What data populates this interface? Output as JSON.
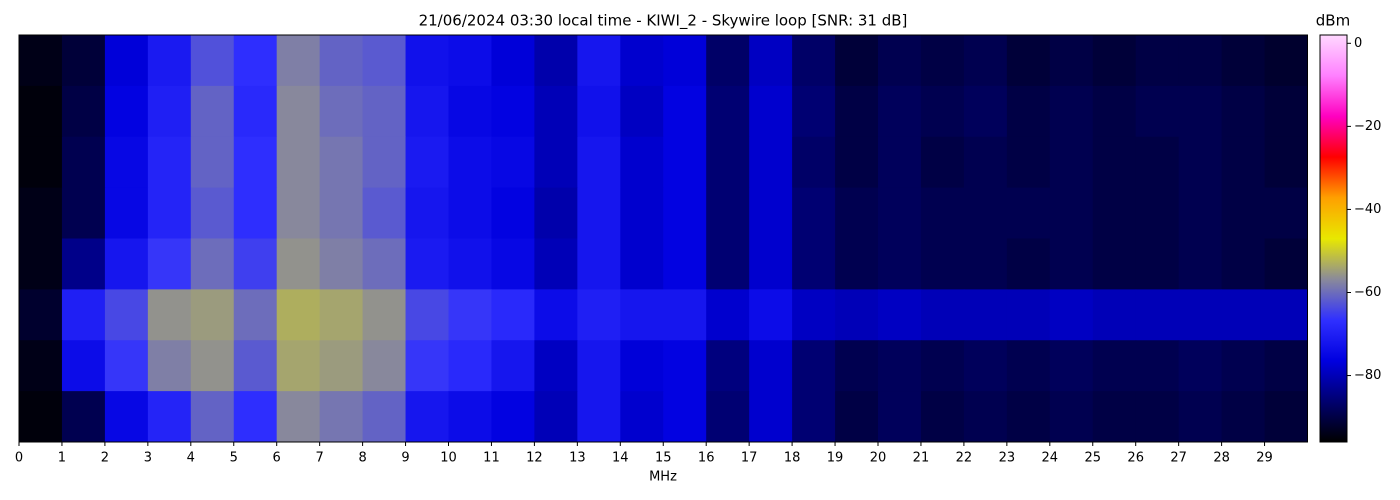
{
  "chart_data": {
    "type": "heatmap",
    "title": "21/06/2024 03:30 local time - KIWI_2 - Skywire loop [SNR: 31 dB]",
    "xlabel": "MHz",
    "colorbar_label": "dBm",
    "bins": [
      0,
      1,
      2,
      3,
      4,
      5,
      6,
      7,
      8,
      9,
      10,
      11,
      12,
      13,
      14,
      15,
      16,
      17,
      18,
      19,
      20,
      21,
      22,
      23,
      24,
      25,
      26,
      27,
      28,
      29,
      30
    ],
    "xlim": [
      0,
      30
    ],
    "xticks": [
      0,
      1,
      2,
      3,
      4,
      5,
      6,
      7,
      8,
      9,
      10,
      11,
      12,
      13,
      14,
      15,
      16,
      17,
      18,
      19,
      20,
      21,
      22,
      23,
      24,
      25,
      26,
      27,
      28,
      29
    ],
    "zlim": [
      -96,
      2
    ],
    "zticks": [
      0,
      {
        "value": -20,
        "label": "−20"
      },
      {
        "value": -40,
        "label": "−40"
      },
      {
        "value": -60,
        "label": "−60"
      },
      {
        "value": -80,
        "label": "−80"
      }
    ],
    "colormap": [
      "#000000",
      "#000070",
      "#0000e0",
      "#3030ff",
      "#8a8a9a",
      "#e8e800",
      "#ffa000",
      "#ff0000",
      "#ff00c0",
      "#ff80ff",
      "#ffd8ff"
    ],
    "values": [
      [
        -94,
        -91,
        -77,
        -71,
        -63,
        -67,
        -58,
        -61,
        -62,
        -73,
        -74,
        -77,
        -81,
        -72,
        -78,
        -77,
        -87,
        -79,
        -87,
        -91,
        -89,
        -90,
        -89,
        -91,
        -90,
        -91,
        -90,
        -90,
        -91,
        -92
      ],
      [
        -95,
        -90,
        -76,
        -70,
        -61,
        -68,
        -57,
        -60,
        -61,
        -72,
        -75,
        -76,
        -80,
        -73,
        -79,
        -76,
        -86,
        -78,
        -86,
        -90,
        -88,
        -89,
        -88,
        -90,
        -89,
        -90,
        -89,
        -89,
        -90,
        -91
      ],
      [
        -95,
        -89,
        -75,
        -69,
        -61,
        -67,
        -57,
        -59,
        -61,
        -71,
        -74,
        -75,
        -80,
        -72,
        -78,
        -76,
        -86,
        -78,
        -87,
        -90,
        -88,
        -90,
        -89,
        -90,
        -89,
        -90,
        -90,
        -89,
        -90,
        -91
      ],
      [
        -94,
        -89,
        -75,
        -69,
        -62,
        -67,
        -57,
        -59,
        -62,
        -72,
        -74,
        -76,
        -81,
        -72,
        -78,
        -76,
        -86,
        -78,
        -86,
        -89,
        -88,
        -89,
        -89,
        -89,
        -89,
        -90,
        -90,
        -89,
        -90,
        -90
      ],
      [
        -94,
        -84,
        -72,
        -66,
        -60,
        -65,
        -56,
        -58,
        -60,
        -71,
        -73,
        -75,
        -80,
        -72,
        -78,
        -76,
        -86,
        -78,
        -86,
        -89,
        -88,
        -89,
        -89,
        -90,
        -89,
        -90,
        -90,
        -89,
        -90,
        -91
      ],
      [
        -92,
        -70,
        -64,
        -56,
        -55,
        -60,
        -53,
        -54,
        -56,
        -64,
        -66,
        -68,
        -74,
        -70,
        -72,
        -72,
        -78,
        -74,
        -79,
        -80,
        -79,
        -80,
        -80,
        -80,
        -79,
        -80,
        -80,
        -80,
        -80,
        -80
      ],
      [
        -94,
        -74,
        -66,
        -58,
        -56,
        -62,
        -54,
        -55,
        -57,
        -66,
        -68,
        -72,
        -79,
        -72,
        -77,
        -76,
        -85,
        -78,
        -86,
        -89,
        -88,
        -89,
        -88,
        -89,
        -88,
        -89,
        -89,
        -88,
        -89,
        -90
      ],
      [
        -95,
        -89,
        -75,
        -69,
        -61,
        -67,
        -57,
        -59,
        -61,
        -72,
        -74,
        -76,
        -80,
        -72,
        -78,
        -76,
        -86,
        -78,
        -86,
        -90,
        -88,
        -90,
        -89,
        -90,
        -89,
        -90,
        -90,
        -89,
        -90,
        -91
      ]
    ]
  }
}
